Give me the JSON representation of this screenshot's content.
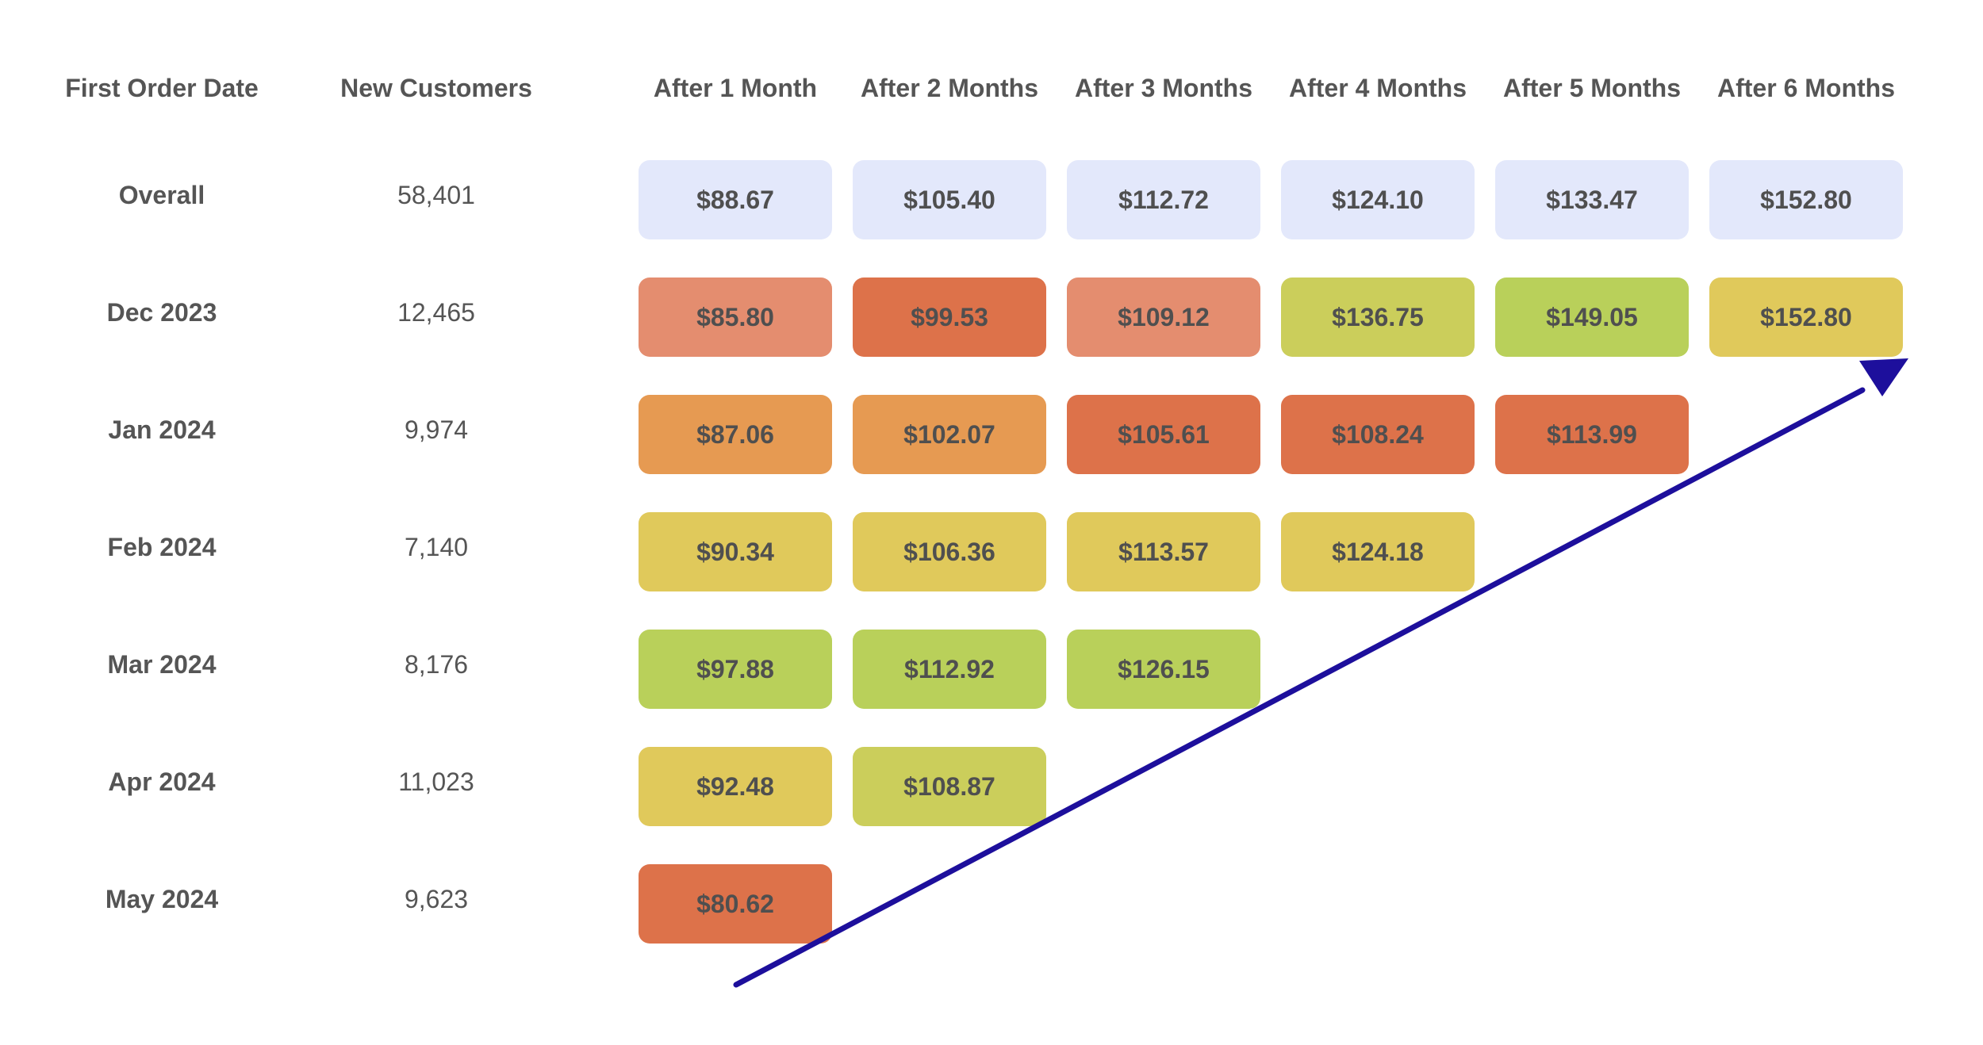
{
  "chart_data": {
    "type": "table",
    "columns": {
      "first_order_date": "First Order Date",
      "new_customers": "New Customers",
      "periods": [
        "After 1 Month",
        "After 2 Months",
        "After 3 Months",
        "After 4 Months",
        "After 5 Months",
        "After 6 Months"
      ]
    },
    "rows": [
      {
        "label": "Overall",
        "customers": "58,401",
        "cells": [
          {
            "text": "$88.67",
            "value": 88.67,
            "color": "#e3e8fb"
          },
          {
            "text": "$105.40",
            "value": 105.4,
            "color": "#e3e8fb"
          },
          {
            "text": "$112.72",
            "value": 112.72,
            "color": "#e3e8fb"
          },
          {
            "text": "$124.10",
            "value": 124.1,
            "color": "#e3e8fb"
          },
          {
            "text": "$133.47",
            "value": 133.47,
            "color": "#e3e8fb"
          },
          {
            "text": "$152.80",
            "value": 152.8,
            "color": "#e3e8fb"
          }
        ]
      },
      {
        "label": "Dec 2023",
        "customers": "12,465",
        "cells": [
          {
            "text": "$85.80",
            "value": 85.8,
            "color": "#e48d6f"
          },
          {
            "text": "$99.53",
            "value": 99.53,
            "color": "#dd724a"
          },
          {
            "text": "$109.12",
            "value": 109.12,
            "color": "#e48d6f"
          },
          {
            "text": "$136.75",
            "value": 136.75,
            "color": "#cbce5b"
          },
          {
            "text": "$149.05",
            "value": 149.05,
            "color": "#b9d05a"
          },
          {
            "text": "$152.80",
            "value": 152.8,
            "color": "#e0c95b"
          }
        ]
      },
      {
        "label": "Jan 2024",
        "customers": "9,974",
        "cells": [
          {
            "text": "$87.06",
            "value": 87.06,
            "color": "#e69a52"
          },
          {
            "text": "$102.07",
            "value": 102.07,
            "color": "#e69a52"
          },
          {
            "text": "$105.61",
            "value": 105.61,
            "color": "#dd724a"
          },
          {
            "text": "$108.24",
            "value": 108.24,
            "color": "#dd724a"
          },
          {
            "text": "$113.99",
            "value": 113.99,
            "color": "#dd724a"
          }
        ]
      },
      {
        "label": "Feb 2024",
        "customers": "7,140",
        "cells": [
          {
            "text": "$90.34",
            "value": 90.34,
            "color": "#e0c95b"
          },
          {
            "text": "$106.36",
            "value": 106.36,
            "color": "#e0c95b"
          },
          {
            "text": "$113.57",
            "value": 113.57,
            "color": "#e0c95b"
          },
          {
            "text": "$124.18",
            "value": 124.18,
            "color": "#e0c95b"
          }
        ]
      },
      {
        "label": "Mar 2024",
        "customers": "8,176",
        "cells": [
          {
            "text": "$97.88",
            "value": 97.88,
            "color": "#b9d05a"
          },
          {
            "text": "$112.92",
            "value": 112.92,
            "color": "#b9d05a"
          },
          {
            "text": "$126.15",
            "value": 126.15,
            "color": "#b9d05a"
          }
        ]
      },
      {
        "label": "Apr 2024",
        "customers": "11,023",
        "cells": [
          {
            "text": "$92.48",
            "value": 92.48,
            "color": "#e0c95b"
          },
          {
            "text": "$108.87",
            "value": 108.87,
            "color": "#cbce5b"
          }
        ]
      },
      {
        "label": "May 2024",
        "customers": "9,623",
        "cells": [
          {
            "text": "$80.62",
            "value": 80.62,
            "color": "#dd724a"
          }
        ]
      }
    ],
    "annotation": {
      "type": "arrow",
      "color": "#1d0f9c"
    }
  }
}
